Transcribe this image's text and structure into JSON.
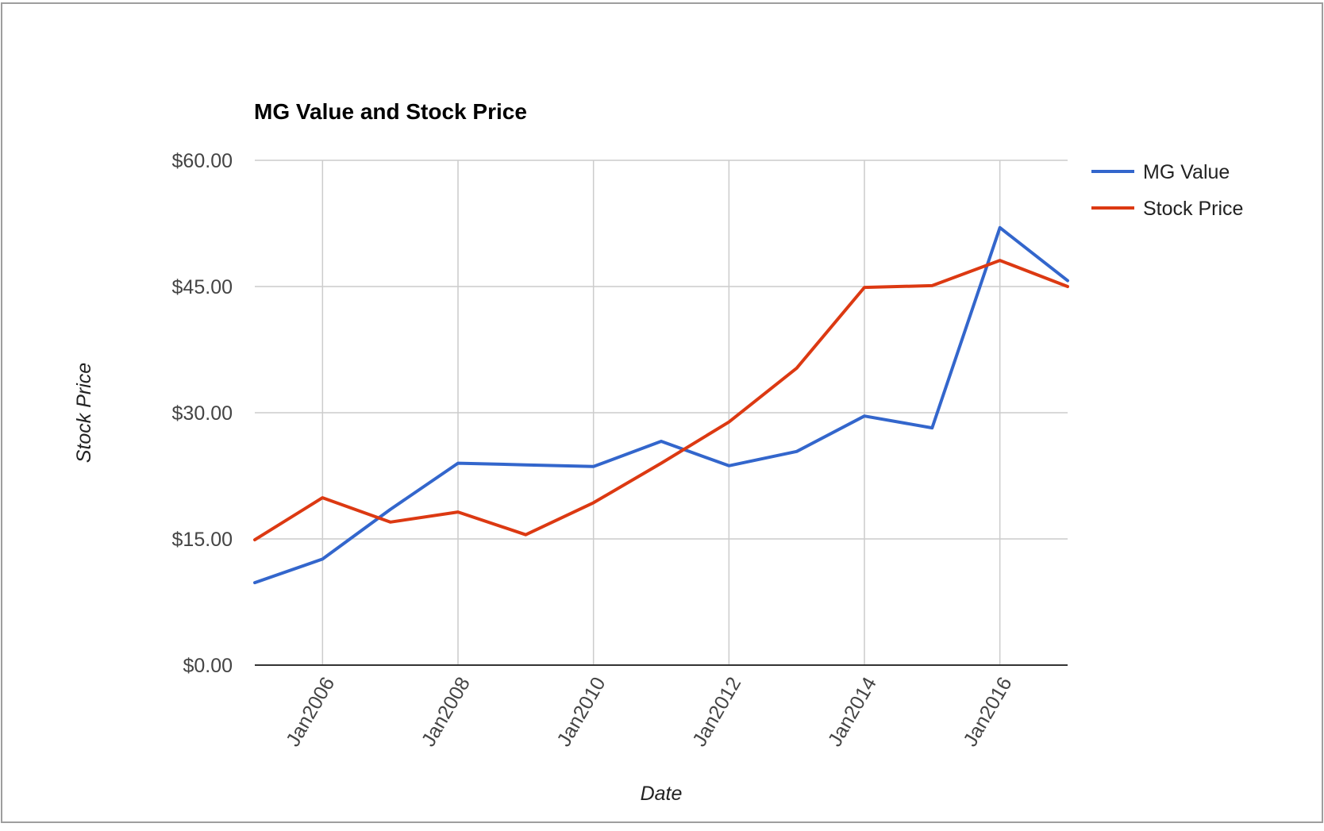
{
  "chart_data": {
    "type": "line",
    "title": "MG Value and Stock Price",
    "xlabel": "Date",
    "ylabel": "Stock Price",
    "x": [
      "Jan2005",
      "Jan2006",
      "Jan2007",
      "Jan2008",
      "Jan2009",
      "Jan2010",
      "Jan2011",
      "Jan2012",
      "Jan2013",
      "Jan2014",
      "Jan2015",
      "Jan2016",
      "Jan2017"
    ],
    "x_ticks": [
      "Jan2006",
      "Jan2008",
      "Jan2010",
      "Jan2012",
      "Jan2014",
      "Jan2016"
    ],
    "y_ticks": [
      "$0.00",
      "$15.00",
      "$30.00",
      "$45.00",
      "$60.00"
    ],
    "ylim": [
      0,
      60
    ],
    "grid": true,
    "legend_position": "right",
    "series": [
      {
        "name": "MG Value",
        "color": "#3366cc",
        "values": [
          9.8,
          12.6,
          18.5,
          24.0,
          23.8,
          23.6,
          26.6,
          23.7,
          25.4,
          29.6,
          28.2,
          52.0,
          45.7
        ]
      },
      {
        "name": "Stock Price",
        "color": "#dc3912",
        "values": [
          14.9,
          19.9,
          17.0,
          18.2,
          15.5,
          19.3,
          24.0,
          28.9,
          35.3,
          44.9,
          45.1,
          48.1,
          45.0
        ]
      }
    ]
  }
}
